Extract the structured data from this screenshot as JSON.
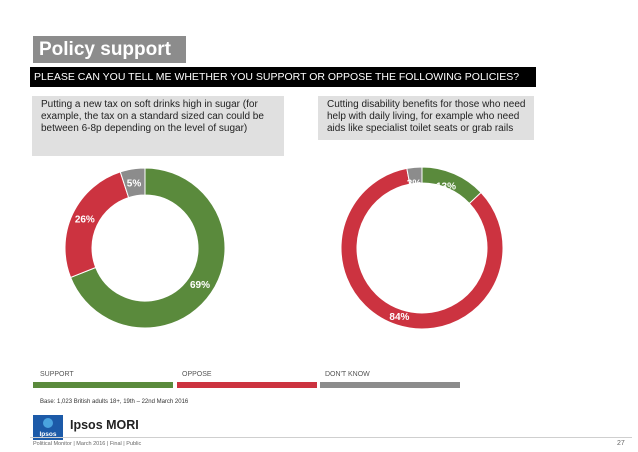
{
  "title": "Policy support",
  "question": "PLEASE CAN YOU TELL ME WHETHER YOU SUPPORT OR OPPOSE THE FOLLOWING POLICIES?",
  "colors": {
    "support": "#5a8a3c",
    "oppose": "#cc3340",
    "dont_know": "#8c8c8c",
    "title_bg": "#8c8c8c"
  },
  "chart_data": [
    {
      "type": "pie",
      "title": "Putting a new tax on soft drinks high in sugar (for example, the tax on a standard sized can could be between 6-8p depending on the level of sugar)",
      "categories": [
        "SUPPORT",
        "OPPOSE",
        "DON'T KNOW"
      ],
      "values": [
        69,
        26,
        5
      ],
      "labels": [
        "69%",
        "26%",
        "5%"
      ]
    },
    {
      "type": "pie",
      "title": "Cutting disability benefits for those who need help with daily living, for example who need aids like specialist toilet seats or grab rails",
      "categories": [
        "SUPPORT",
        "OPPOSE",
        "DON'T KNOW"
      ],
      "values": [
        13,
        84,
        3
      ],
      "labels": [
        "13%",
        "84%",
        "3%"
      ]
    }
  ],
  "legend": {
    "support": "SUPPORT",
    "oppose": "OPPOSE",
    "dont_know": "DON'T KNOW"
  },
  "base": "Base: 1,023 British adults 18+, 19th – 22nd March 2016",
  "brand": "Ipsos MORI",
  "logo_text": "Ipsos",
  "footer": "Political Monitor | March 2016 | Final | Public",
  "page_number": "27"
}
